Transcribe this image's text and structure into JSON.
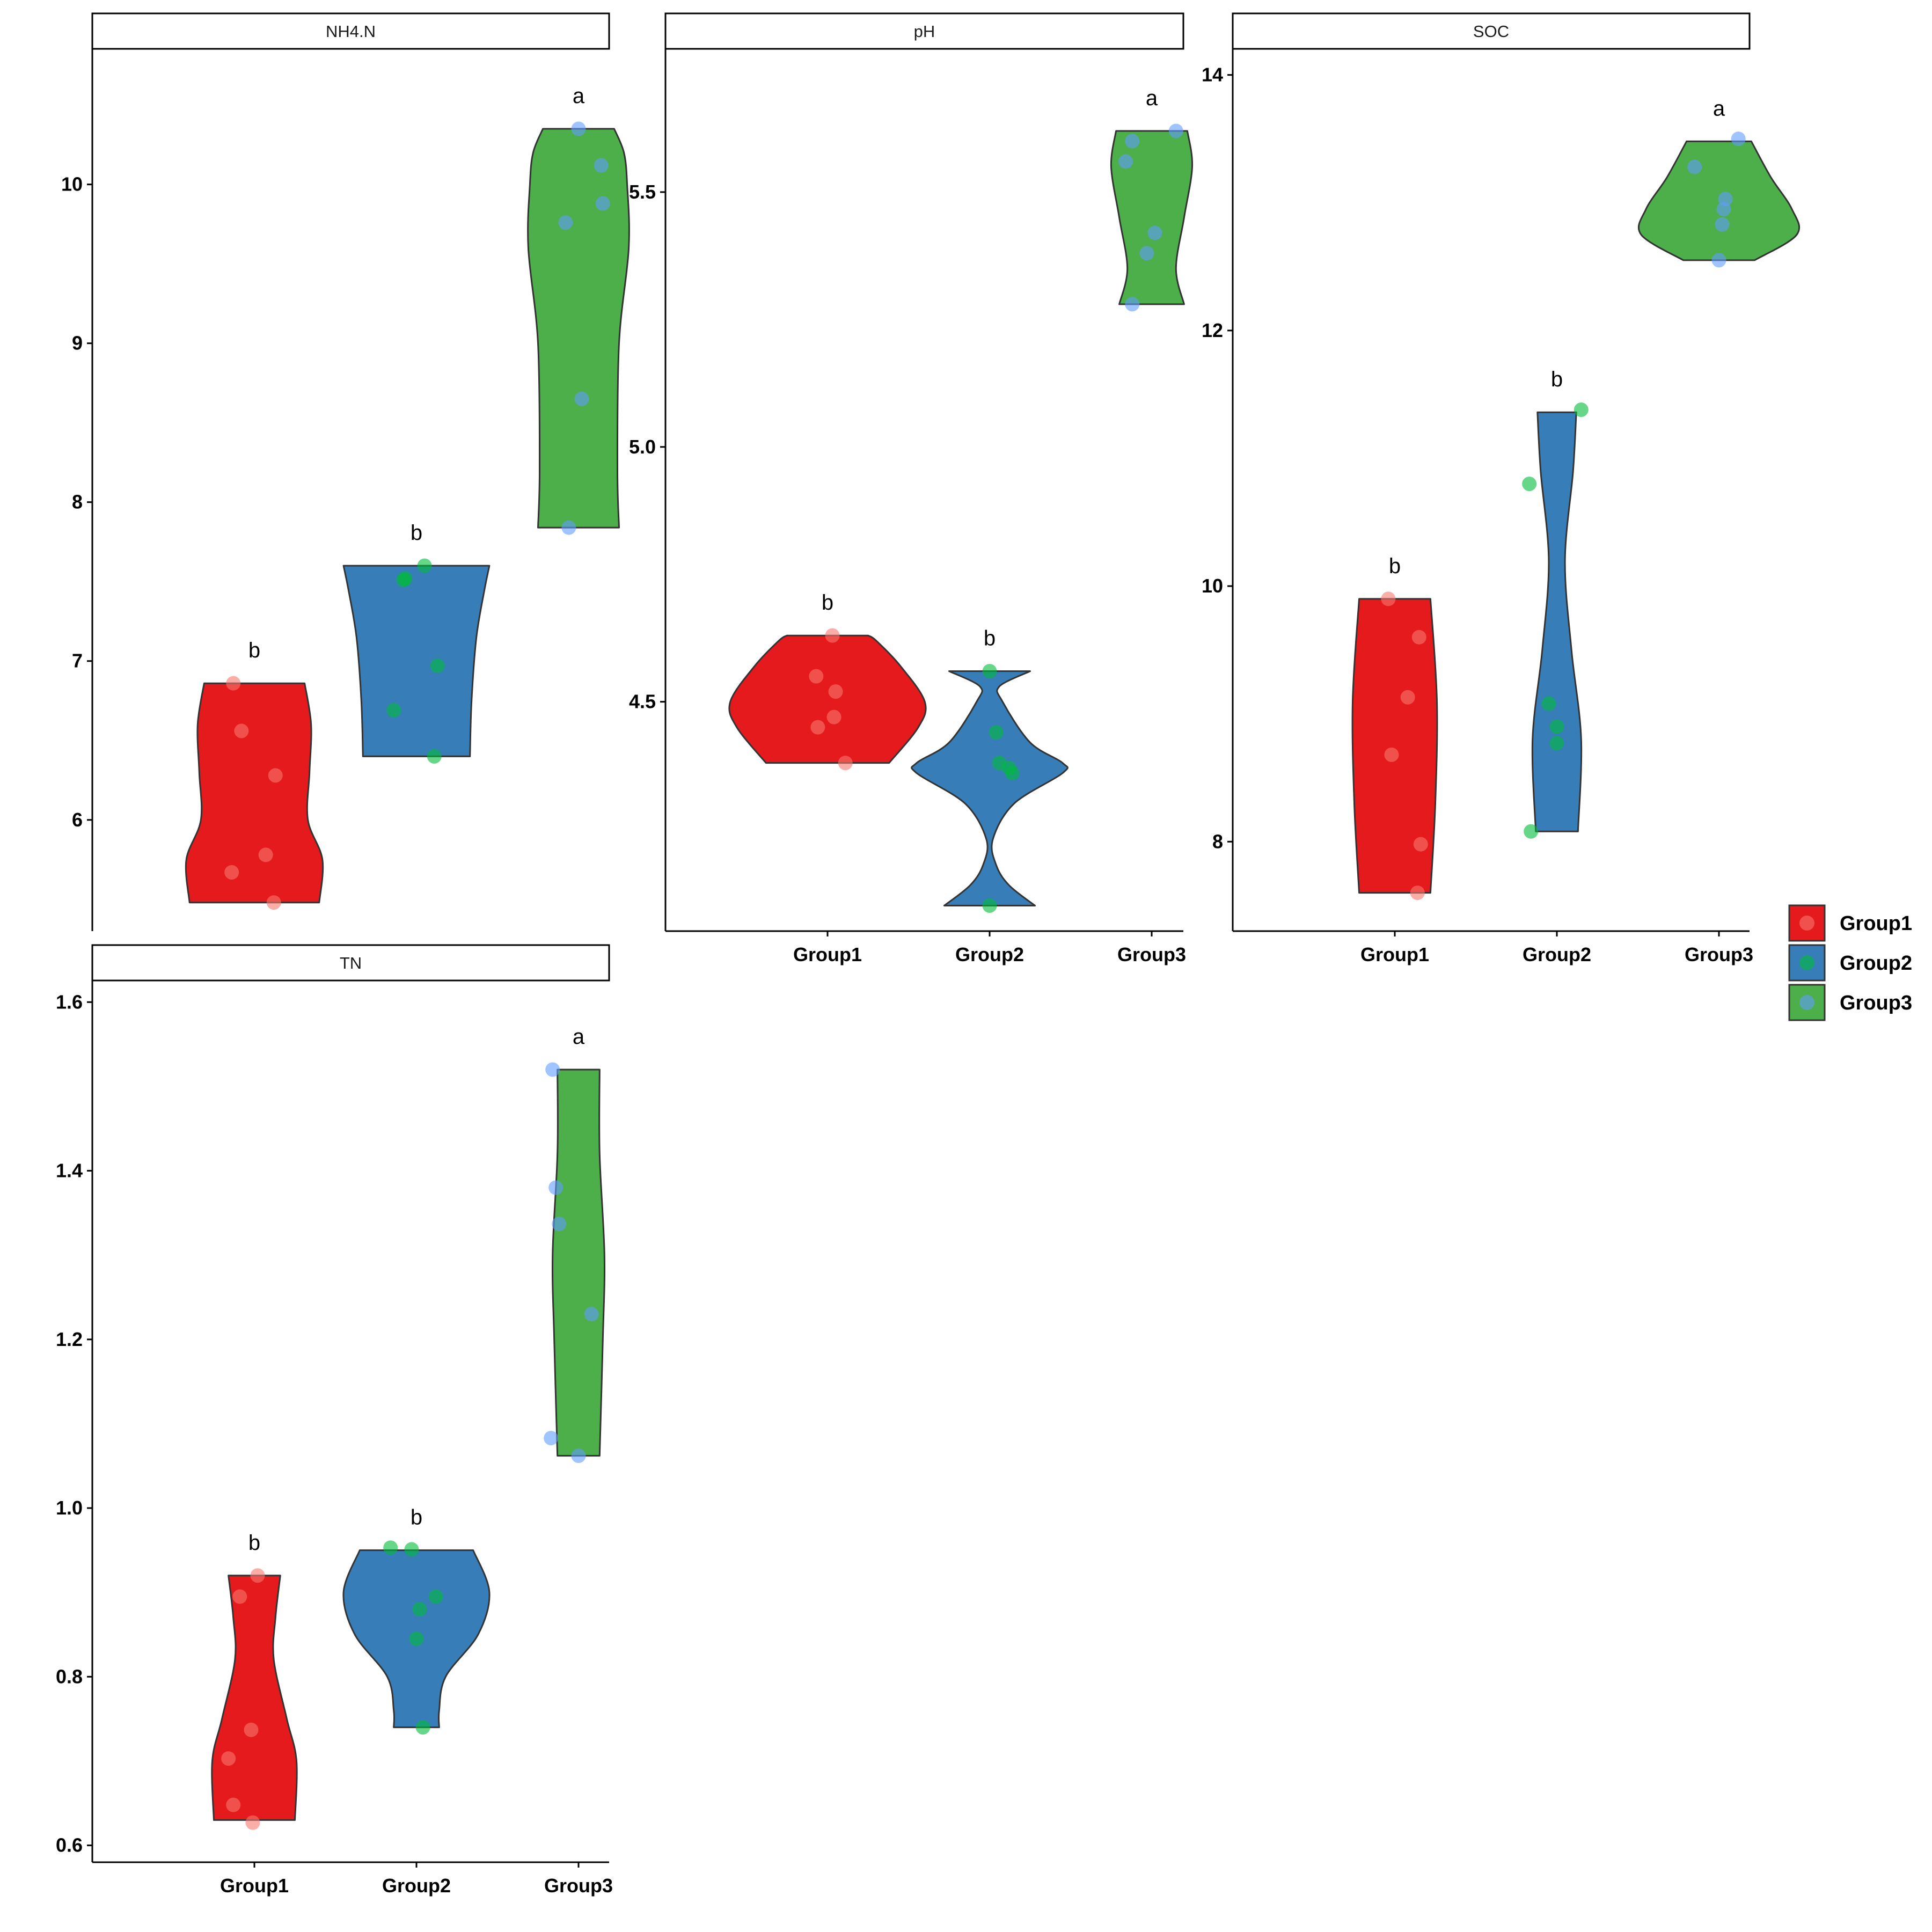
{
  "colors": {
    "fill": {
      "Group1": "#E41A1C",
      "Group2": "#377EB8",
      "Group3": "#4DAF4A"
    },
    "point": {
      "Group1": "#F8766D",
      "Group2": "#00BA38",
      "Group3": "#619CFF"
    },
    "outline": "#333333"
  },
  "legend": {
    "position": "right",
    "entries": [
      {
        "label": "Group1",
        "fill": "#E41A1C",
        "point": "#F8766D"
      },
      {
        "label": "Group2",
        "fill": "#377EB8",
        "point": "#00BA38"
      },
      {
        "label": "Group3",
        "fill": "#4DAF4A",
        "point": "#619CFF"
      }
    ]
  },
  "chart_data": [
    {
      "type": "violin",
      "title": "NH4.N",
      "categories": [
        "Group1",
        "Group2",
        "Group3"
      ],
      "show_x_labels": false,
      "ylim": [
        5.3,
        10.85
      ],
      "y_ticks": [
        6,
        7,
        8,
        9,
        10
      ],
      "y_tick_labels": [
        "6",
        "7",
        "8",
        "9",
        "10"
      ],
      "groups": [
        {
          "name": "Group1",
          "sig": "b",
          "points": [
            6.86,
            6.56,
            6.28,
            5.78,
            5.67,
            5.48
          ],
          "point_offsets": [
            -0.13,
            -0.08,
            0.13,
            0.07,
            -0.14,
            0.12
          ],
          "profile": [
            [
              5.48,
              0.4
            ],
            [
              5.75,
              0.42
            ],
            [
              6.0,
              0.33
            ],
            [
              6.3,
              0.34
            ],
            [
              6.6,
              0.35
            ],
            [
              6.86,
              0.31
            ]
          ]
        },
        {
          "name": "Group2",
          "sig": "b",
          "points": [
            7.6,
            7.52,
            7.51,
            6.97,
            6.69,
            6.4
          ],
          "point_offsets": [
            0.05,
            -0.07,
            -0.08,
            0.13,
            -0.14,
            0.11
          ],
          "profile": [
            [
              6.4,
              0.33
            ],
            [
              6.75,
              0.34
            ],
            [
              7.15,
              0.37
            ],
            [
              7.45,
              0.42
            ],
            [
              7.6,
              0.45
            ]
          ]
        },
        {
          "name": "Group3",
          "sig": "a",
          "points": [
            10.35,
            10.12,
            9.88,
            9.76,
            8.65,
            7.84
          ],
          "point_offsets": [
            0.0,
            0.14,
            0.15,
            -0.08,
            0.02,
            -0.06
          ],
          "profile": [
            [
              7.84,
              0.25
            ],
            [
              8.2,
              0.24
            ],
            [
              9.0,
              0.25
            ],
            [
              9.6,
              0.31
            ],
            [
              10.0,
              0.3
            ],
            [
              10.2,
              0.28
            ],
            [
              10.35,
              0.22
            ]
          ]
        }
      ]
    },
    {
      "type": "violin",
      "title": "pH",
      "categories": [
        "Group1",
        "Group2",
        "Group3"
      ],
      "show_x_labels": true,
      "ylim": [
        4.05,
        5.78
      ],
      "y_ticks": [
        4.5,
        5.0,
        5.5
      ],
      "y_tick_labels": [
        "4.5",
        "5.0",
        "5.5"
      ],
      "groups": [
        {
          "name": "Group1",
          "sig": "b",
          "points": [
            4.63,
            4.55,
            4.52,
            4.47,
            4.45,
            4.38
          ],
          "point_offsets": [
            0.03,
            -0.07,
            0.05,
            0.04,
            -0.06,
            0.11
          ],
          "profile": [
            [
              4.38,
              0.38
            ],
            [
              4.45,
              0.56
            ],
            [
              4.5,
              0.6
            ],
            [
              4.57,
              0.45
            ],
            [
              4.62,
              0.3
            ],
            [
              4.63,
              0.25
            ]
          ]
        },
        {
          "name": "Group2",
          "sig": "b",
          "points": [
            4.56,
            4.44,
            4.38,
            4.37,
            4.36,
            4.1
          ],
          "point_offsets": [
            0.0,
            0.04,
            0.06,
            0.12,
            0.14,
            0.0
          ],
          "profile": [
            [
              4.1,
              0.28
            ],
            [
              4.14,
              0.12
            ],
            [
              4.18,
              0.04
            ],
            [
              4.23,
              0.02
            ],
            [
              4.3,
              0.15
            ],
            [
              4.36,
              0.45
            ],
            [
              4.38,
              0.45
            ],
            [
              4.42,
              0.25
            ],
            [
              4.5,
              0.08
            ],
            [
              4.53,
              0.06
            ],
            [
              4.56,
              0.25
            ]
          ]
        },
        {
          "name": "Group3",
          "sig": "a",
          "points": [
            5.62,
            5.6,
            5.56,
            5.42,
            5.38,
            5.28
          ],
          "point_offsets": [
            0.15,
            -0.12,
            -0.16,
            0.02,
            -0.03,
            -0.12
          ],
          "profile": [
            [
              5.28,
              0.2
            ],
            [
              5.35,
              0.15
            ],
            [
              5.45,
              0.2
            ],
            [
              5.55,
              0.25
            ],
            [
              5.62,
              0.22
            ]
          ]
        }
      ]
    },
    {
      "type": "violin",
      "title": "SOC",
      "categories": [
        "Group1",
        "Group2",
        "Group3"
      ],
      "show_x_labels": true,
      "ylim": [
        7.3,
        14.2
      ],
      "y_ticks": [
        8,
        10,
        12,
        14
      ],
      "y_tick_labels": [
        "8",
        "10",
        "12",
        "14"
      ],
      "groups": [
        {
          "name": "Group1",
          "sig": "b",
          "points": [
            9.9,
            9.6,
            9.13,
            8.68,
            7.98,
            7.6
          ],
          "point_offsets": [
            -0.04,
            0.15,
            0.08,
            -0.02,
            0.16,
            0.14
          ],
          "profile": [
            [
              7.6,
              0.22
            ],
            [
              8.3,
              0.25
            ],
            [
              9.1,
              0.26
            ],
            [
              9.9,
              0.22
            ]
          ]
        },
        {
          "name": "Group2",
          "sig": "b",
          "points": [
            11.38,
            10.8,
            9.08,
            8.9,
            8.77,
            8.08
          ],
          "point_offsets": [
            0.15,
            -0.17,
            -0.05,
            0.0,
            0.0,
            -0.16
          ],
          "profile": [
            [
              8.08,
              0.13
            ],
            [
              8.8,
              0.15
            ],
            [
              9.5,
              0.09
            ],
            [
              10.2,
              0.05
            ],
            [
              10.9,
              0.1
            ],
            [
              11.36,
              0.12
            ]
          ]
        },
        {
          "name": "Group3",
          "sig": "a",
          "points": [
            13.5,
            13.28,
            13.03,
            12.95,
            12.83,
            12.55
          ],
          "point_offsets": [
            0.12,
            -0.15,
            0.04,
            0.03,
            0.02,
            0.0
          ],
          "profile": [
            [
              12.55,
              0.22
            ],
            [
              12.75,
              0.48
            ],
            [
              12.95,
              0.45
            ],
            [
              13.2,
              0.32
            ],
            [
              13.48,
              0.2
            ]
          ]
        }
      ]
    },
    {
      "type": "violin",
      "title": "TN",
      "categories": [
        "Group1",
        "Group2",
        "Group3"
      ],
      "show_x_labels": true,
      "ylim": [
        0.58,
        1.625
      ],
      "y_ticks": [
        0.6,
        0.8,
        1.0,
        1.2,
        1.4,
        1.6
      ],
      "y_tick_labels": [
        "0.6",
        "0.8",
        "1.0",
        "1.2",
        "1.4",
        "1.6"
      ],
      "groups": [
        {
          "name": "Group1",
          "sig": "b",
          "points": [
            0.92,
            0.895,
            0.737,
            0.703,
            0.648,
            0.627
          ],
          "point_offsets": [
            0.02,
            -0.09,
            -0.02,
            -0.16,
            -0.13,
            -0.01
          ],
          "profile": [
            [
              0.63,
              0.25
            ],
            [
              0.7,
              0.26
            ],
            [
              0.75,
              0.2
            ],
            [
              0.82,
              0.12
            ],
            [
              0.87,
              0.13
            ],
            [
              0.92,
              0.16
            ]
          ]
        },
        {
          "name": "Group2",
          "sig": "b",
          "points": [
            0.953,
            0.951,
            0.895,
            0.88,
            0.845,
            0.74
          ],
          "point_offsets": [
            -0.16,
            -0.03,
            0.12,
            0.02,
            0.0,
            0.04
          ],
          "profile": [
            [
              0.74,
              0.14
            ],
            [
              0.76,
              0.14
            ],
            [
              0.8,
              0.18
            ],
            [
              0.85,
              0.38
            ],
            [
              0.9,
              0.45
            ],
            [
              0.95,
              0.35
            ]
          ]
        },
        {
          "name": "Group3",
          "sig": "a",
          "points": [
            1.52,
            1.38,
            1.337,
            1.23,
            1.083,
            1.062
          ],
          "point_offsets": [
            -0.16,
            -0.14,
            -0.12,
            0.08,
            -0.17,
            0.0
          ],
          "profile": [
            [
              1.062,
              0.13
            ],
            [
              1.2,
              0.15
            ],
            [
              1.3,
              0.16
            ],
            [
              1.42,
              0.13
            ],
            [
              1.52,
              0.13
            ]
          ]
        }
      ]
    }
  ]
}
